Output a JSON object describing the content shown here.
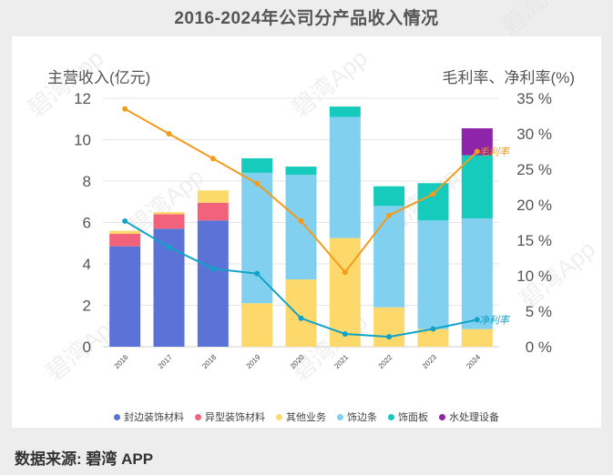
{
  "page": {
    "title": "2016-2024年公司分产品收入情况",
    "source": "数据来源: 碧湾 APP",
    "watermark": "碧湾App"
  },
  "chart_data": {
    "type": "bar",
    "stacked": true,
    "categories": [
      "2016",
      "2017",
      "2018",
      "2019",
      "2020",
      "2021",
      "2022",
      "2023",
      "2024"
    ],
    "ylabel_left": "主营收入(亿元)",
    "ylabel_right": "毛利率、净利率(%)",
    "ylim_left": [
      0,
      12
    ],
    "yticks_left": [
      "0",
      "2",
      "4",
      "6",
      "8",
      "10",
      "12"
    ],
    "ylim_right": [
      0,
      35
    ],
    "yticks_right": [
      "0 %",
      "5 %",
      "10 %",
      "15 %",
      "20 %",
      "25 %",
      "30 %",
      "35 %"
    ],
    "grid": true,
    "legend_position": "bottom",
    "series": [
      {
        "name": "封边装饰材料",
        "color": "#5b72d6",
        "values": [
          4.85,
          5.7,
          6.1,
          0,
          0,
          0,
          0,
          0,
          0
        ]
      },
      {
        "name": "异型装饰材料",
        "color": "#f2637b",
        "values": [
          0.6,
          0.7,
          0.85,
          0,
          0,
          0,
          0,
          0,
          0
        ]
      },
      {
        "name": "其他业务",
        "color": "#fdd86a",
        "values": [
          0.15,
          0.1,
          0.6,
          2.1,
          3.25,
          5.25,
          1.9,
          0.85,
          0.85
        ]
      },
      {
        "name": "饰边条",
        "color": "#82d0f0",
        "values": [
          0,
          0,
          0,
          6.3,
          5.05,
          5.85,
          4.9,
          5.25,
          5.35
        ]
      },
      {
        "name": "饰面板",
        "color": "#17cbbc",
        "values": [
          0,
          0,
          0,
          0.7,
          0.4,
          0.5,
          0.95,
          1.8,
          3.05
        ]
      },
      {
        "name": "水处理设备",
        "color": "#8e24aa",
        "values": [
          0,
          0,
          0,
          0,
          0,
          0,
          0,
          0,
          1.3
        ]
      }
    ],
    "lines": [
      {
        "name": "毛利率",
        "color": "#f29b1c",
        "axis": "right",
        "values": [
          33.5,
          30,
          26.5,
          23,
          17.7,
          10.5,
          18.5,
          21.5,
          27.5
        ]
      },
      {
        "name": "净利率",
        "color": "#11a3c7",
        "axis": "right",
        "values": [
          17.7,
          14,
          11,
          10.3,
          4,
          1.8,
          1.4,
          2.5,
          3.8
        ]
      }
    ]
  }
}
